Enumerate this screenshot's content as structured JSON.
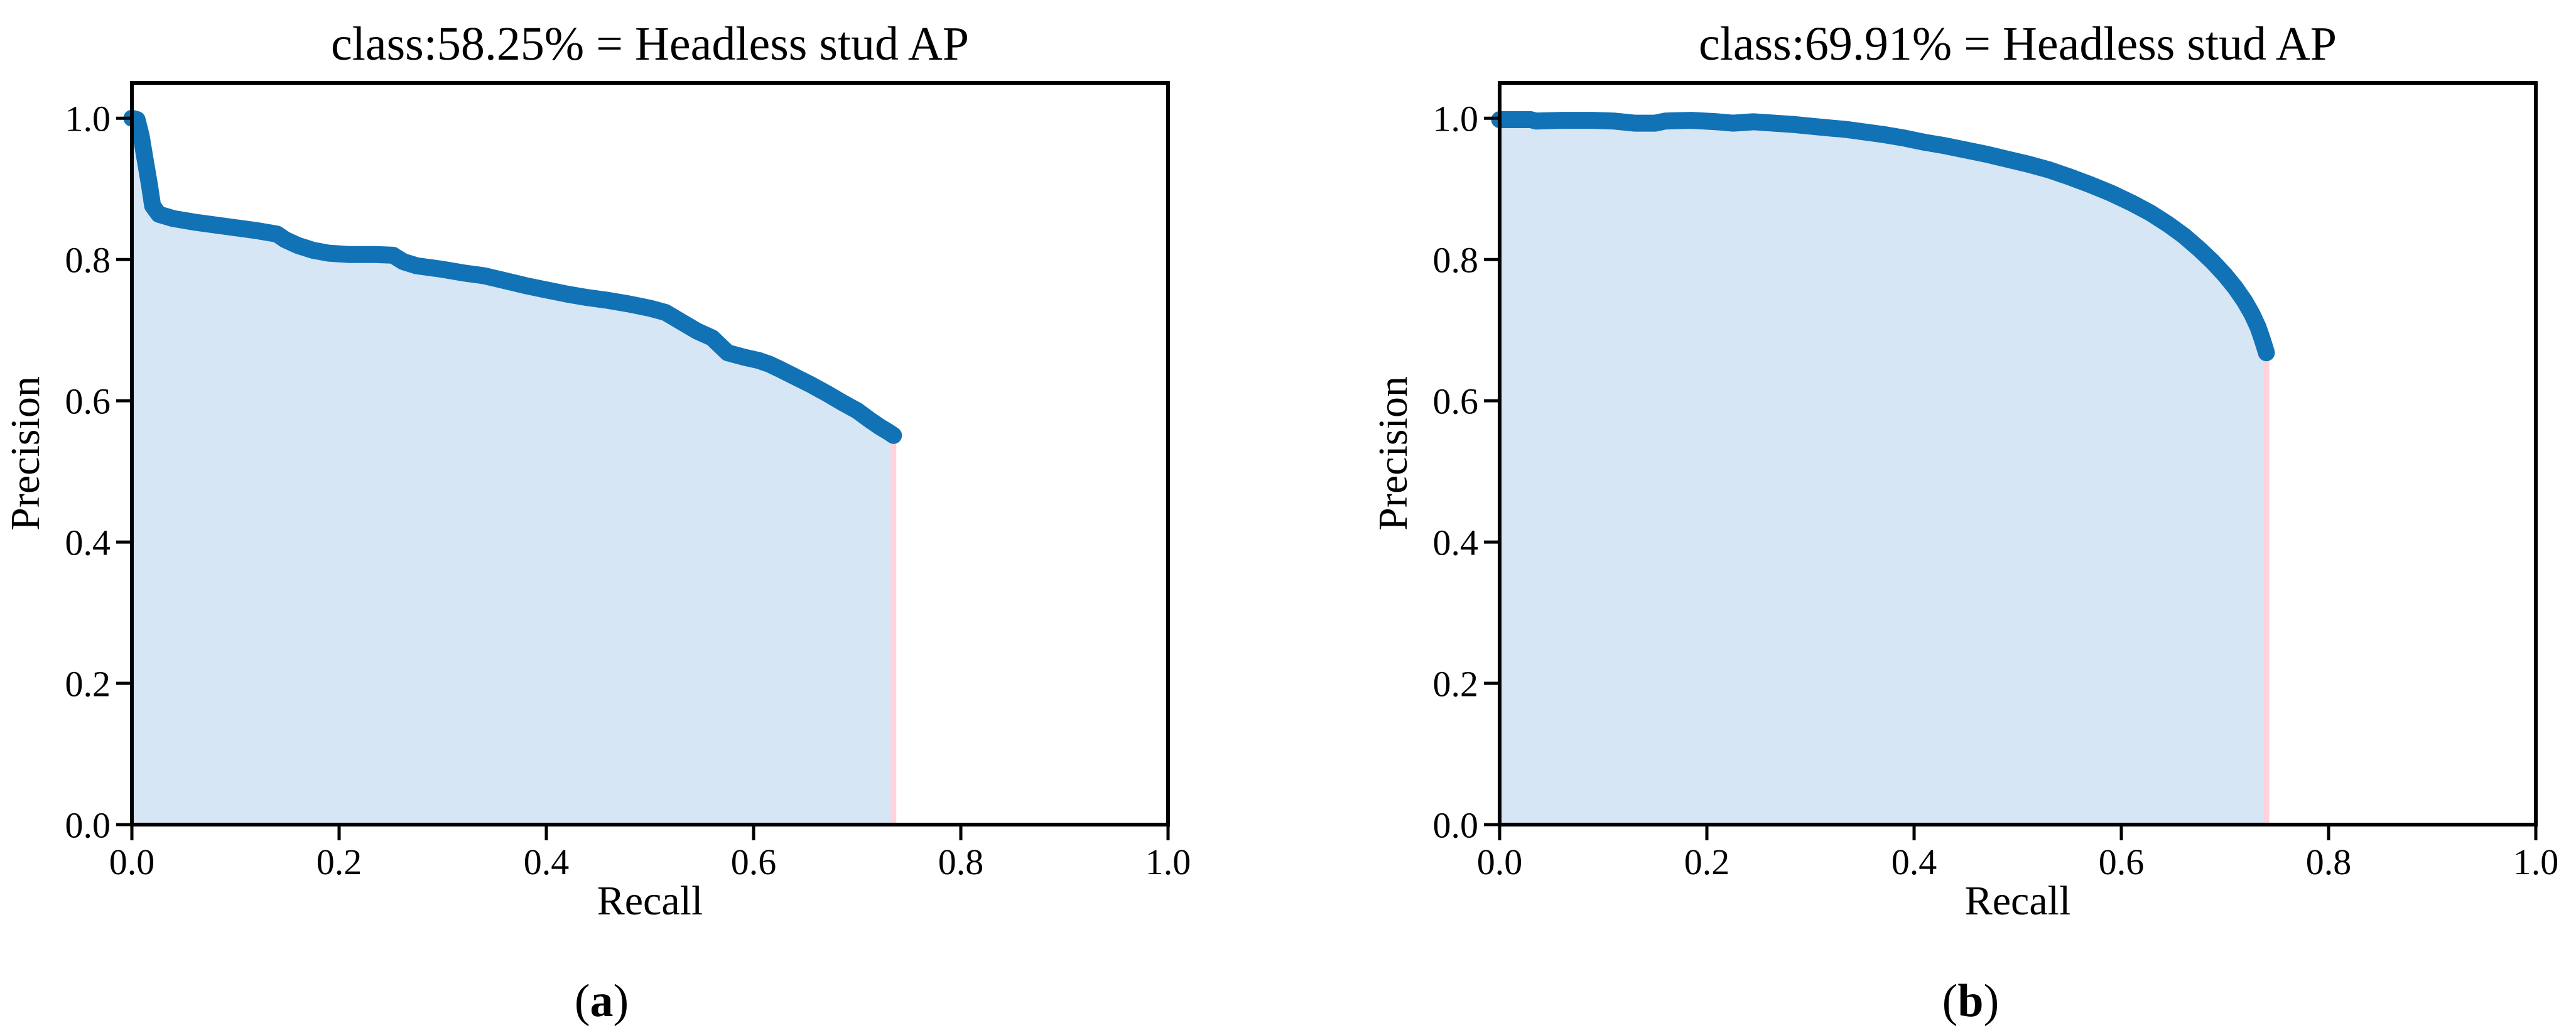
{
  "figure": {
    "background": "#ffffff"
  },
  "chart_data": [
    {
      "type": "area",
      "title": "class:58.25% = Headless stud AP",
      "ap_percent": 58.25,
      "class_name": "Headless stud",
      "xlabel": "Recall",
      "ylabel": "Precision",
      "xlim": [
        0.0,
        1.0
      ],
      "ylim": [
        0.0,
        1.05
      ],
      "xticks": [
        0.0,
        0.2,
        0.4,
        0.6,
        0.8,
        1.0
      ],
      "yticks": [
        0.0,
        0.2,
        0.4,
        0.6,
        0.8,
        1.0
      ],
      "grid": false,
      "legend": null,
      "line_color": "#1272b6",
      "fill_color": "#d6e6f5",
      "end_line_color": "#ffd2dd",
      "frame_color": "#000000",
      "points": [
        [
          0.0,
          1.0
        ],
        [
          0.005,
          0.998
        ],
        [
          0.009,
          0.975
        ],
        [
          0.013,
          0.94
        ],
        [
          0.017,
          0.905
        ],
        [
          0.02,
          0.876
        ],
        [
          0.026,
          0.864
        ],
        [
          0.04,
          0.858
        ],
        [
          0.06,
          0.853
        ],
        [
          0.08,
          0.849
        ],
        [
          0.1,
          0.845
        ],
        [
          0.12,
          0.841
        ],
        [
          0.14,
          0.836
        ],
        [
          0.148,
          0.828
        ],
        [
          0.16,
          0.82
        ],
        [
          0.175,
          0.813
        ],
        [
          0.19,
          0.809
        ],
        [
          0.21,
          0.807
        ],
        [
          0.235,
          0.807
        ],
        [
          0.252,
          0.806
        ],
        [
          0.262,
          0.797
        ],
        [
          0.275,
          0.791
        ],
        [
          0.3,
          0.786
        ],
        [
          0.32,
          0.781
        ],
        [
          0.34,
          0.777
        ],
        [
          0.36,
          0.77
        ],
        [
          0.38,
          0.763
        ],
        [
          0.4,
          0.757
        ],
        [
          0.42,
          0.751
        ],
        [
          0.44,
          0.746
        ],
        [
          0.46,
          0.742
        ],
        [
          0.48,
          0.737
        ],
        [
          0.5,
          0.731
        ],
        [
          0.515,
          0.725
        ],
        [
          0.53,
          0.712
        ],
        [
          0.545,
          0.699
        ],
        [
          0.56,
          0.689
        ],
        [
          0.575,
          0.668
        ],
        [
          0.59,
          0.662
        ],
        [
          0.605,
          0.657
        ],
        [
          0.615,
          0.652
        ],
        [
          0.625,
          0.645
        ],
        [
          0.64,
          0.634
        ],
        [
          0.655,
          0.623
        ],
        [
          0.67,
          0.611
        ],
        [
          0.685,
          0.598
        ],
        [
          0.7,
          0.586
        ],
        [
          0.712,
          0.573
        ],
        [
          0.722,
          0.563
        ],
        [
          0.73,
          0.556
        ],
        [
          0.735,
          0.551
        ]
      ]
    },
    {
      "type": "area",
      "title": "class:69.91% = Headless stud AP",
      "ap_percent": 69.91,
      "class_name": "Headless stud",
      "xlabel": "Recall",
      "ylabel": "Precision",
      "xlim": [
        0.0,
        1.0
      ],
      "ylim": [
        0.0,
        1.05
      ],
      "xticks": [
        0.0,
        0.2,
        0.4,
        0.6,
        0.8,
        1.0
      ],
      "yticks": [
        0.0,
        0.2,
        0.4,
        0.6,
        0.8,
        1.0
      ],
      "grid": false,
      "legend": null,
      "line_color": "#1272b6",
      "fill_color": "#d6e6f5",
      "end_line_color": "#ffd2dd",
      "frame_color": "#000000",
      "points": [
        [
          0.0,
          0.998
        ],
        [
          0.03,
          0.998
        ],
        [
          0.035,
          0.996
        ],
        [
          0.06,
          0.997
        ],
        [
          0.09,
          0.997
        ],
        [
          0.11,
          0.996
        ],
        [
          0.13,
          0.993
        ],
        [
          0.15,
          0.993
        ],
        [
          0.16,
          0.996
        ],
        [
          0.185,
          0.997
        ],
        [
          0.21,
          0.995
        ],
        [
          0.225,
          0.993
        ],
        [
          0.245,
          0.995
        ],
        [
          0.265,
          0.993
        ],
        [
          0.285,
          0.991
        ],
        [
          0.305,
          0.988
        ],
        [
          0.32,
          0.986
        ],
        [
          0.335,
          0.984
        ],
        [
          0.35,
          0.981
        ],
        [
          0.37,
          0.977
        ],
        [
          0.39,
          0.972
        ],
        [
          0.41,
          0.966
        ],
        [
          0.43,
          0.961
        ],
        [
          0.45,
          0.955
        ],
        [
          0.47,
          0.949
        ],
        [
          0.49,
          0.942
        ],
        [
          0.51,
          0.935
        ],
        [
          0.53,
          0.927
        ],
        [
          0.55,
          0.917
        ],
        [
          0.57,
          0.906
        ],
        [
          0.59,
          0.894
        ],
        [
          0.61,
          0.88
        ],
        [
          0.628,
          0.866
        ],
        [
          0.645,
          0.85
        ],
        [
          0.66,
          0.834
        ],
        [
          0.675,
          0.815
        ],
        [
          0.688,
          0.797
        ],
        [
          0.7,
          0.778
        ],
        [
          0.71,
          0.76
        ],
        [
          0.719,
          0.741
        ],
        [
          0.726,
          0.723
        ],
        [
          0.732,
          0.704
        ],
        [
          0.736,
          0.687
        ],
        [
          0.739,
          0.673
        ],
        [
          0.74,
          0.668
        ]
      ]
    }
  ],
  "captions": [
    {
      "open": "(",
      "letter": "a",
      "close": ")"
    },
    {
      "open": "(",
      "letter": "b",
      "close": ")"
    }
  ]
}
